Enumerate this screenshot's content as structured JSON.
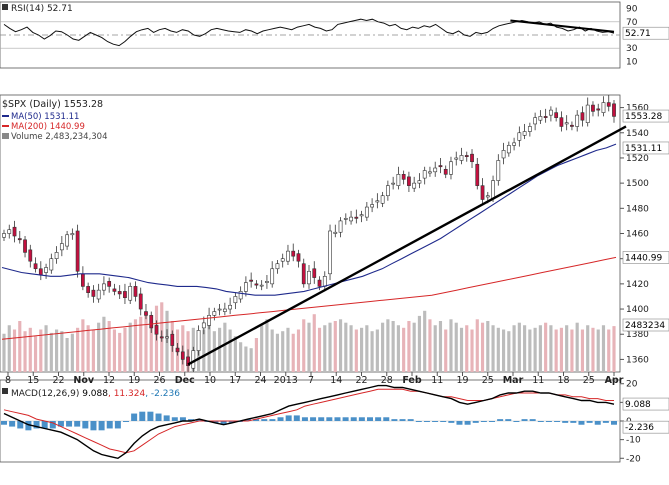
{
  "chart_data": [
    {
      "type": "line",
      "panel": "rsi",
      "legend_label": "RSI(14)",
      "legend_value": "52.71",
      "yticks": [
        90,
        70,
        50,
        30,
        10
      ],
      "ylim": [
        0,
        100
      ],
      "levels": [
        70,
        50,
        30
      ],
      "current_value_tag": "52.71",
      "series": [
        {
          "name": "RSI(14)",
          "values": [
            66,
            60,
            55,
            58,
            62,
            54,
            50,
            44,
            49,
            56,
            55,
            50,
            44,
            42,
            48,
            54,
            50,
            46,
            40,
            36,
            34,
            40,
            48,
            55,
            58,
            60,
            54,
            58,
            60,
            56,
            54,
            58,
            56,
            50,
            48,
            52,
            58,
            60,
            58,
            56,
            55,
            54,
            58,
            56,
            52,
            56,
            58,
            60,
            62,
            60,
            58,
            62,
            64,
            66,
            62,
            60,
            56,
            58,
            66,
            68,
            70,
            72,
            74,
            72,
            74,
            70,
            68,
            64,
            66,
            60,
            58,
            62,
            60,
            64,
            62,
            66,
            60,
            54,
            52,
            56,
            50,
            48,
            54,
            52,
            54,
            60,
            64,
            66,
            68,
            70,
            72,
            70,
            68,
            70,
            66,
            68,
            62,
            60,
            56,
            58,
            62,
            56,
            60,
            56,
            54,
            55,
            52.71
          ]
        }
      ],
      "trendline": {
        "from": [
          88,
          72
        ],
        "to": [
          106,
          55
        ]
      }
    },
    {
      "type": "candlestick",
      "panel": "price",
      "title": "$SPX (Daily) 1553.28",
      "legend": [
        {
          "label": "MA(50) 1531.11",
          "color": "#1f2a8c"
        },
        {
          "label": "MA(200) 1440.99",
          "color": "#d62728"
        },
        {
          "label": "Volume 2,483,234,304",
          "color": "#888888"
        }
      ],
      "yticks": [
        1560,
        1540,
        1520,
        1500,
        1480,
        1460,
        1440,
        1420,
        1400,
        1380,
        1360
      ],
      "ylim": [
        1350,
        1570
      ],
      "price_tags": [
        "1553.28",
        "1531.11",
        "1440.99"
      ],
      "volume_tag": "2483234",
      "xticks": [
        "8",
        "15",
        "22",
        "Nov",
        "12",
        "19",
        "26",
        "Dec",
        "10",
        "17",
        "24",
        "2013",
        "7",
        "14",
        "22",
        "28",
        "Feb",
        "11",
        "19",
        "25",
        "Mar",
        "11",
        "18",
        "25",
        "Apr"
      ],
      "close": [
        1460,
        1463,
        1458,
        1455,
        1445,
        1438,
        1432,
        1427,
        1433,
        1440,
        1445,
        1452,
        1459,
        1460,
        1430,
        1418,
        1413,
        1410,
        1415,
        1420,
        1418,
        1414,
        1412,
        1409,
        1418,
        1410,
        1400,
        1395,
        1385,
        1380,
        1377,
        1378,
        1371,
        1366,
        1360,
        1355,
        1367,
        1383,
        1389,
        1395,
        1398,
        1400,
        1400,
        1403,
        1410,
        1414,
        1421,
        1422,
        1419,
        1419,
        1422,
        1432,
        1436,
        1440,
        1446,
        1442,
        1438,
        1420,
        1430,
        1425,
        1418,
        1426,
        1462,
        1461,
        1470,
        1472,
        1473,
        1472,
        1475,
        1481,
        1483,
        1486,
        1490,
        1498,
        1500,
        1507,
        1503,
        1498,
        1500,
        1502,
        1510,
        1509,
        1512,
        1513,
        1507,
        1517,
        1520,
        1522,
        1521,
        1517,
        1498,
        1487,
        1490,
        1502,
        1518,
        1526,
        1530,
        1532,
        1540,
        1541,
        1545,
        1552,
        1553,
        1552,
        1558,
        1552,
        1545,
        1548,
        1545,
        1554,
        1550,
        1562,
        1557,
        1558,
        1564,
        1561,
        1553
      ],
      "ma50": [
        1433,
        1431,
        1429,
        1428,
        1427,
        1426,
        1426,
        1427,
        1428,
        1428,
        1428,
        1427,
        1426,
        1425,
        1423,
        1421,
        1420,
        1419,
        1418,
        1418,
        1418,
        1417,
        1416,
        1414,
        1413,
        1412,
        1411,
        1411,
        1411,
        1412,
        1413,
        1414,
        1416,
        1418,
        1420,
        1422,
        1424,
        1426,
        1429,
        1432,
        1436,
        1440,
        1444,
        1448,
        1452,
        1456,
        1461,
        1466,
        1471,
        1476,
        1481,
        1486,
        1491,
        1496,
        1501,
        1506,
        1510,
        1514,
        1517,
        1520,
        1523,
        1526,
        1528,
        1531
      ],
      "ma200": [
        1376,
        1377,
        1378,
        1379,
        1380,
        1381,
        1382,
        1383,
        1384,
        1385,
        1386,
        1387,
        1388,
        1389,
        1390,
        1391,
        1392,
        1393,
        1394,
        1395,
        1396,
        1397,
        1398,
        1399,
        1400,
        1401,
        1402,
        1403,
        1404,
        1405,
        1406,
        1407,
        1408,
        1409,
        1410,
        1411,
        1413,
        1415,
        1417,
        1419,
        1421,
        1423,
        1425,
        1427,
        1429,
        1431,
        1433,
        1435,
        1437,
        1439,
        1441
      ],
      "volume_rel": [
        0.45,
        0.55,
        0.5,
        0.6,
        0.48,
        0.52,
        0.42,
        0.5,
        0.55,
        0.46,
        0.5,
        0.48,
        0.4,
        0.45,
        0.52,
        0.62,
        0.55,
        0.5,
        0.58,
        0.65,
        0.6,
        0.5,
        0.46,
        0.52,
        0.58,
        0.62,
        0.65,
        0.7,
        0.55,
        0.78,
        0.82,
        0.72,
        0.6,
        0.5,
        0.55,
        0.48,
        0.52,
        0.45,
        0.5,
        0.55,
        0.48,
        0.52,
        0.58,
        0.5,
        0.42,
        0.35,
        0.3,
        0.28,
        0.4,
        0.55,
        0.62,
        0.5,
        0.45,
        0.48,
        0.52,
        0.45,
        0.5,
        0.62,
        0.58,
        0.68,
        0.52,
        0.55,
        0.58,
        0.6,
        0.62,
        0.58,
        0.55,
        0.5,
        0.52,
        0.55,
        0.48,
        0.5,
        0.58,
        0.62,
        0.6,
        0.55,
        0.52,
        0.6,
        0.58,
        0.66,
        0.72,
        0.62,
        0.55,
        0.6,
        0.5,
        0.62,
        0.58,
        0.52,
        0.55,
        0.5,
        0.62,
        0.58,
        0.6,
        0.55,
        0.52,
        0.5,
        0.48,
        0.55,
        0.58,
        0.55,
        0.5,
        0.52,
        0.55,
        0.58,
        0.55,
        0.5,
        0.52,
        0.55,
        0.5,
        0.58,
        0.5,
        0.55,
        0.52,
        0.5,
        0.55,
        0.5,
        0.54
      ],
      "trendlines": [
        {
          "from_index": 35,
          "from_price": 1356,
          "to_index": 121,
          "to_price": 1545
        }
      ]
    },
    {
      "type": "line",
      "panel": "macd",
      "legend_label": "MACD(12,26,9)",
      "legend_values": [
        "9.088",
        "11.324",
        "-2.236"
      ],
      "legend_colors": [
        "#000000",
        "#d62728",
        "#1f77b4"
      ],
      "yticks": [
        20,
        10,
        0,
        -10,
        -20
      ],
      "ylim": [
        -22,
        22
      ],
      "value_tags": [
        "9.088",
        "-2.236"
      ],
      "series": [
        {
          "name": "MACD",
          "values": [
            4,
            2,
            0,
            -2,
            -3,
            -4,
            -5,
            -6,
            -8,
            -10,
            -13,
            -16,
            -18,
            -19,
            -20,
            -17,
            -12,
            -8,
            -5,
            -3,
            -2,
            -1,
            0,
            0,
            1,
            0,
            -1,
            -2,
            -1,
            0,
            1,
            2,
            3,
            4,
            6,
            8,
            9,
            10,
            11,
            12,
            13,
            14,
            15,
            16,
            17,
            18,
            19,
            19,
            18,
            18,
            17,
            16,
            15,
            14,
            13,
            12,
            10,
            9,
            10,
            11,
            12,
            14,
            15,
            15,
            16,
            16,
            15,
            15,
            14,
            13,
            12,
            11,
            11,
            10,
            10,
            9
          ]
        },
        {
          "name": "Signal",
          "values": [
            6,
            5,
            4,
            3,
            1,
            0,
            -1,
            -3,
            -5,
            -7,
            -9,
            -11,
            -13,
            -15,
            -16,
            -17,
            -16,
            -13,
            -10,
            -7,
            -5,
            -3,
            -2,
            -1,
            0,
            0,
            0,
            0,
            0,
            0,
            0,
            1,
            2,
            3,
            4,
            5,
            6,
            8,
            9,
            10,
            11,
            12,
            13,
            14,
            15,
            16,
            17,
            17,
            17,
            17,
            16,
            16,
            15,
            14,
            13,
            13,
            12,
            11,
            11,
            11,
            12,
            13,
            14,
            15,
            15,
            15,
            15,
            15,
            14,
            14,
            13,
            13,
            12,
            12,
            11,
            11
          ]
        },
        {
          "name": "Histogram",
          "values": [
            -2,
            -3,
            -4,
            -5,
            -4,
            -4,
            -4,
            -3,
            -3,
            -3,
            -4,
            -5,
            -5,
            -4,
            -4,
            0,
            4,
            5,
            5,
            4,
            3,
            2,
            2,
            1,
            1,
            0,
            -1,
            -2,
            -1,
            0,
            1,
            1,
            1,
            1,
            2,
            3,
            3,
            2,
            2,
            2,
            2,
            2,
            2,
            2,
            2,
            2,
            2,
            2,
            1,
            1,
            1,
            0,
            0,
            0,
            0,
            -1,
            -2,
            -2,
            -1,
            0,
            0,
            1,
            1,
            0,
            1,
            1,
            0,
            0,
            0,
            -1,
            -1,
            -2,
            -1,
            -2,
            -1,
            -2
          ]
        }
      ]
    }
  ]
}
